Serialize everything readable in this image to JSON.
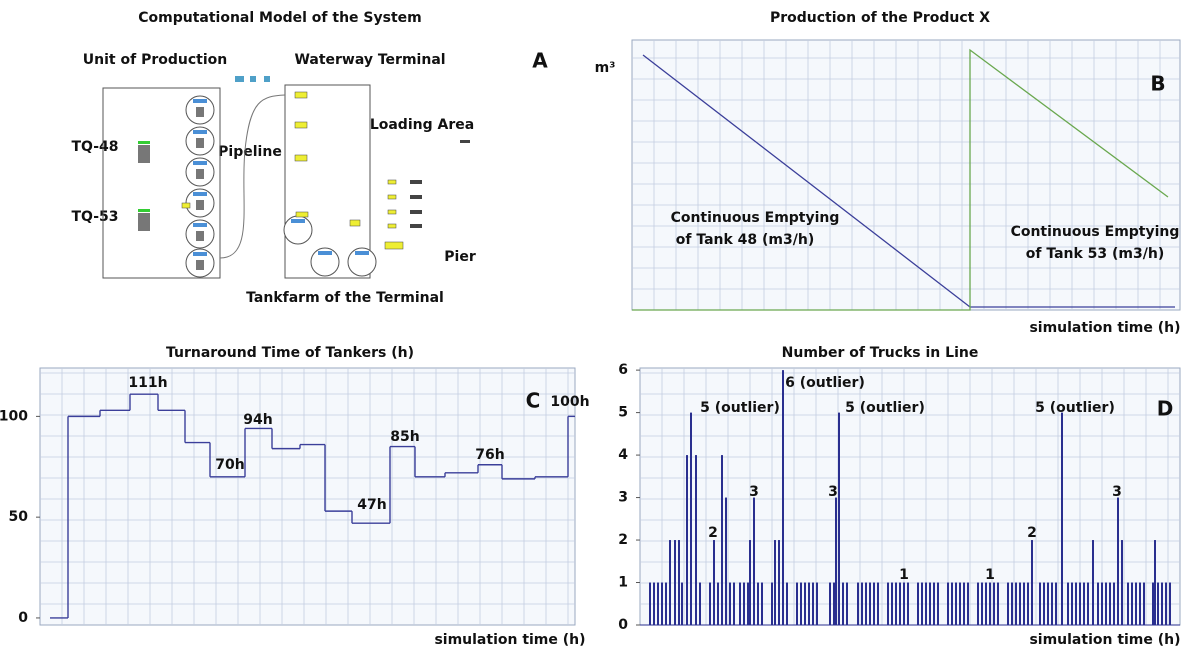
{
  "diagram": {
    "title": "Computational Model of the System",
    "panel_label": "A",
    "labels": [
      "Unit of Production",
      "Waterway Terminal",
      "TQ-48",
      "TQ-53",
      "Pipeline",
      "Loading Area",
      "Pier",
      "Tankfarm of the Terminal"
    ]
  },
  "chart_data": [
    {
      "type": "line",
      "title": "Production of the Product X",
      "panel_label": "B",
      "y_label": "m³",
      "x_label": "simulation time (h)",
      "grid": true,
      "xlim": [
        0,
        548
      ],
      "ylim": [
        0,
        270
      ],
      "series": [
        {
          "color": "#3b3f9a",
          "x": [
            11,
            338,
            543
          ],
          "values": [
            255,
            3,
            3
          ]
        },
        {
          "color": "#6aa84f",
          "x": [
            0,
            338,
            338,
            536
          ],
          "values": [
            0,
            0,
            260,
            113
          ]
        }
      ],
      "annotations": [
        "Continuous Emptying",
        "of Tank 48 (m3/h)",
        "Continuous Emptying",
        "of Tank 53 (m3/h)"
      ]
    },
    {
      "type": "step",
      "title": "Turnaround Time of Tankers (h)",
      "panel_label": "C",
      "x_label": "simulation time (h)",
      "grid": true,
      "xlim": [
        0,
        535
      ],
      "ylim": [
        -3.5,
        124
      ],
      "yticks": [
        0,
        50,
        100
      ],
      "x": [
        10,
        28,
        60,
        90,
        118,
        145,
        170,
        205,
        232,
        260,
        285,
        312,
        350,
        375,
        405,
        438,
        462,
        495,
        528
      ],
      "values": [
        0,
        100,
        103,
        111,
        103,
        87,
        70,
        94,
        84,
        86,
        53,
        47,
        85,
        70,
        72,
        76,
        69,
        70,
        100
      ],
      "color": "#3b3f9a",
      "annotations": [
        "111h",
        "94h",
        "70h",
        "47h",
        "85h",
        "76h",
        "100h"
      ]
    },
    {
      "type": "spike",
      "title": "Number of Trucks in Line",
      "panel_label": "D",
      "x_label": "simulation time (h)",
      "grid": true,
      "xlim": [
        0,
        540
      ],
      "ylim": [
        0,
        6.05
      ],
      "yticks": [
        0,
        1,
        2,
        3,
        4,
        5,
        6
      ],
      "color": "#2a2f8f",
      "x": [
        10,
        14,
        18,
        22,
        26,
        30,
        35,
        39,
        42,
        47,
        51,
        56,
        60,
        70,
        74,
        78,
        82,
        86,
        90,
        94,
        100,
        104,
        108,
        110,
        114,
        118,
        122,
        132,
        135,
        139,
        143,
        147,
        157,
        161,
        165,
        169,
        173,
        177,
        190,
        194,
        196,
        199,
        203,
        207,
        218,
        222,
        226,
        230,
        234,
        238,
        248,
        252,
        256,
        260,
        264,
        268,
        278,
        282,
        286,
        290,
        294,
        298,
        308,
        312,
        316,
        320,
        324,
        328,
        338,
        342,
        346,
        350,
        354,
        358,
        368,
        372,
        376,
        380,
        384,
        388,
        392,
        400,
        404,
        408,
        412,
        416,
        422,
        428,
        432,
        436,
        440,
        444,
        448,
        453,
        458,
        462,
        466,
        470,
        474,
        478,
        482,
        488,
        492,
        496,
        500,
        504,
        513,
        515,
        518,
        522,
        526,
        530
      ],
      "values": [
        1,
        1,
        1,
        1,
        1,
        2,
        2,
        2,
        1,
        4,
        5,
        4,
        1,
        1,
        2,
        1,
        4,
        3,
        1,
        1,
        1,
        1,
        1,
        2,
        3,
        1,
        1,
        1,
        2,
        2,
        6,
        1,
        1,
        1,
        1,
        1,
        1,
        1,
        1,
        1,
        3,
        5,
        1,
        1,
        1,
        1,
        1,
        1,
        1,
        1,
        1,
        1,
        1,
        1,
        1,
        1,
        1,
        1,
        1,
        1,
        1,
        1,
        1,
        1,
        1,
        1,
        1,
        1,
        1,
        1,
        1,
        1,
        1,
        1,
        1,
        1,
        1,
        1,
        1,
        1,
        2,
        1,
        1,
        1,
        1,
        1,
        5,
        1,
        1,
        1,
        1,
        1,
        1,
        2,
        1,
        1,
        1,
        1,
        1,
        3,
        2,
        1,
        1,
        1,
        1,
        1,
        1,
        2,
        1,
        1,
        1,
        1
      ],
      "annotations": [
        "5 (outlier)",
        "6 (outlier)",
        "5 (outlier)",
        "5 (outlier)",
        "2",
        "3",
        "3",
        "1",
        "1",
        "2",
        "3"
      ]
    }
  ]
}
